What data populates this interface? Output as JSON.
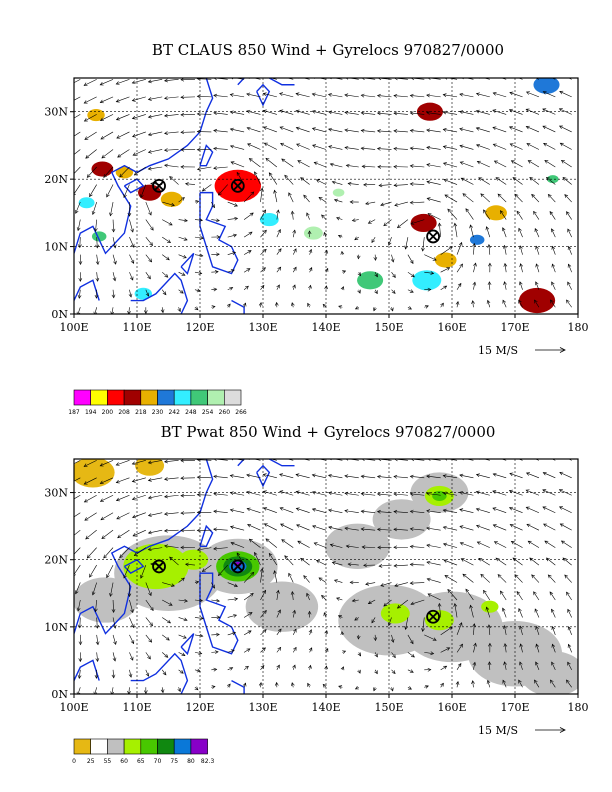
{
  "chart_data": [
    {
      "type": "heatmap",
      "title": "BT CLAUS 850 Wind + Gyrelocs 970827/0000",
      "xlim": [
        100,
        180
      ],
      "ylim": [
        0,
        35
      ],
      "x_ticks": [
        "100E",
        "110E",
        "120E",
        "130E",
        "140E",
        "150E",
        "160E",
        "170E",
        "180"
      ],
      "y_ticks": [
        "0N",
        "10N",
        "20N",
        "30N"
      ],
      "grid": true,
      "vector_reference": "15 M/S",
      "colorbar": {
        "labels": [
          "187",
          "194",
          "200",
          "208",
          "218",
          "230",
          "242",
          "248",
          "254",
          "260",
          "266"
        ],
        "colors": [
          "#ff00ff",
          "#ffff00",
          "#ff0000",
          "#a00000",
          "#e8b000",
          "#1f78d8",
          "#33eeff",
          "#40c878",
          "#b0f0b0",
          "#dcdcdc"
        ]
      },
      "gyre_locations": [
        {
          "lon": 113.5,
          "lat": 19
        },
        {
          "lon": 126,
          "lat": 19
        },
        {
          "lon": 157,
          "lat": 11.5
        }
      ],
      "blobs": [
        {
          "lon": 103.5,
          "lat": 29.5,
          "r": 1.2,
          "level": 4
        },
        {
          "lon": 104.5,
          "lat": 21.5,
          "r": 1.5,
          "level": 3
        },
        {
          "lon": 108,
          "lat": 21,
          "r": 1.2,
          "level": 4
        },
        {
          "lon": 102,
          "lat": 16.5,
          "r": 1.1,
          "level": 6
        },
        {
          "lon": 112,
          "lat": 18,
          "r": 1.6,
          "level": 3
        },
        {
          "lon": 115.5,
          "lat": 17,
          "r": 1.5,
          "level": 4
        },
        {
          "lon": 126,
          "lat": 19,
          "r": 3.2,
          "level": 2
        },
        {
          "lon": 104,
          "lat": 11.5,
          "r": 1.0,
          "level": 7
        },
        {
          "lon": 138,
          "lat": 12,
          "r": 1.3,
          "level": 8
        },
        {
          "lon": 156.5,
          "lat": 30,
          "r": 1.8,
          "level": 3
        },
        {
          "lon": 155.5,
          "lat": 13.5,
          "r": 1.8,
          "level": 3
        },
        {
          "lon": 159,
          "lat": 8,
          "r": 1.5,
          "level": 4
        },
        {
          "lon": 156,
          "lat": 5,
          "r": 2.0,
          "level": 6
        },
        {
          "lon": 164,
          "lat": 11,
          "r": 1.0,
          "level": 5
        },
        {
          "lon": 167,
          "lat": 15,
          "r": 1.5,
          "level": 4
        },
        {
          "lon": 173.5,
          "lat": 2,
          "r": 2.5,
          "level": 3
        },
        {
          "lon": 175,
          "lat": 34,
          "r": 1.8,
          "level": 5
        },
        {
          "lon": 176,
          "lat": 20,
          "r": 0.8,
          "level": 7
        },
        {
          "lon": 147,
          "lat": 5,
          "r": 1.8,
          "level": 7
        },
        {
          "lon": 142,
          "lat": 18,
          "r": 0.8,
          "level": 8
        },
        {
          "lon": 111,
          "lat": 3,
          "r": 1.2,
          "level": 6
        },
        {
          "lon": 131,
          "lat": 14,
          "r": 1.3,
          "level": 6
        }
      ]
    },
    {
      "type": "heatmap",
      "title": "BT Pwat 850 Wind + Gyrelocs 970827/0000",
      "xlim": [
        100,
        180
      ],
      "ylim": [
        0,
        35
      ],
      "x_ticks": [
        "100E",
        "110E",
        "120E",
        "130E",
        "140E",
        "150E",
        "160E",
        "170E",
        "180"
      ],
      "y_ticks": [
        "0N",
        "10N",
        "20N",
        "30N"
      ],
      "grid": true,
      "vector_reference": "15 M/S",
      "colorbar": {
        "labels": [
          "0",
          "25",
          "55",
          "60",
          "65",
          "70",
          "75",
          "80",
          "82.3"
        ],
        "colors": [
          "#e6b814",
          "#ffffff",
          "#c0c0c0",
          "#a6f000",
          "#48c800",
          "#108810",
          "#0a78d8",
          "#8800c8"
        ]
      },
      "gyre_locations": [
        {
          "lon": 113.5,
          "lat": 19
        },
        {
          "lon": 126,
          "lat": 19
        },
        {
          "lon": 157,
          "lat": 11.5
        }
      ],
      "blobs": [
        {
          "lon": 103,
          "lat": 33,
          "r": 3.0,
          "level": 0
        },
        {
          "lon": 112,
          "lat": 34,
          "r": 2.0,
          "level": 0
        },
        {
          "lon": 115,
          "lat": 18,
          "r": 7.5,
          "level": 2
        },
        {
          "lon": 126,
          "lat": 19,
          "r": 5.5,
          "level": 2
        },
        {
          "lon": 133,
          "lat": 13,
          "r": 5.0,
          "level": 2
        },
        {
          "lon": 150,
          "lat": 11,
          "r": 7.0,
          "level": 2
        },
        {
          "lon": 160,
          "lat": 10,
          "r": 7.0,
          "level": 2
        },
        {
          "lon": 170,
          "lat": 6,
          "r": 6.5,
          "level": 2
        },
        {
          "lon": 176,
          "lat": 3,
          "r": 4.5,
          "level": 2
        },
        {
          "lon": 145,
          "lat": 22,
          "r": 4.5,
          "level": 2
        },
        {
          "lon": 152,
          "lat": 26,
          "r": 4.0,
          "level": 2
        },
        {
          "lon": 158,
          "lat": 30,
          "r": 4.0,
          "level": 2
        },
        {
          "lon": 105,
          "lat": 14,
          "r": 4.5,
          "level": 2
        },
        {
          "lon": 113,
          "lat": 19,
          "r": 4.5,
          "level": 3
        },
        {
          "lon": 119,
          "lat": 20,
          "r": 2.0,
          "level": 3
        },
        {
          "lon": 126,
          "lat": 19,
          "r": 3.0,
          "level": 4
        },
        {
          "lon": 126,
          "lat": 19,
          "r": 2.0,
          "level": 5
        },
        {
          "lon": 126,
          "lat": 19,
          "r": 1.2,
          "level": 6
        },
        {
          "lon": 126,
          "lat": 19.3,
          "r": 0.5,
          "level": 7
        },
        {
          "lon": 151,
          "lat": 12,
          "r": 2.0,
          "level": 3
        },
        {
          "lon": 158,
          "lat": 11,
          "r": 2.0,
          "level": 3
        },
        {
          "lon": 158,
          "lat": 29.5,
          "r": 2.0,
          "level": 3
        },
        {
          "lon": 158,
          "lat": 29.5,
          "r": 1.0,
          "level": 4
        },
        {
          "lon": 166,
          "lat": 13,
          "r": 1.2,
          "level": 3
        }
      ]
    }
  ]
}
